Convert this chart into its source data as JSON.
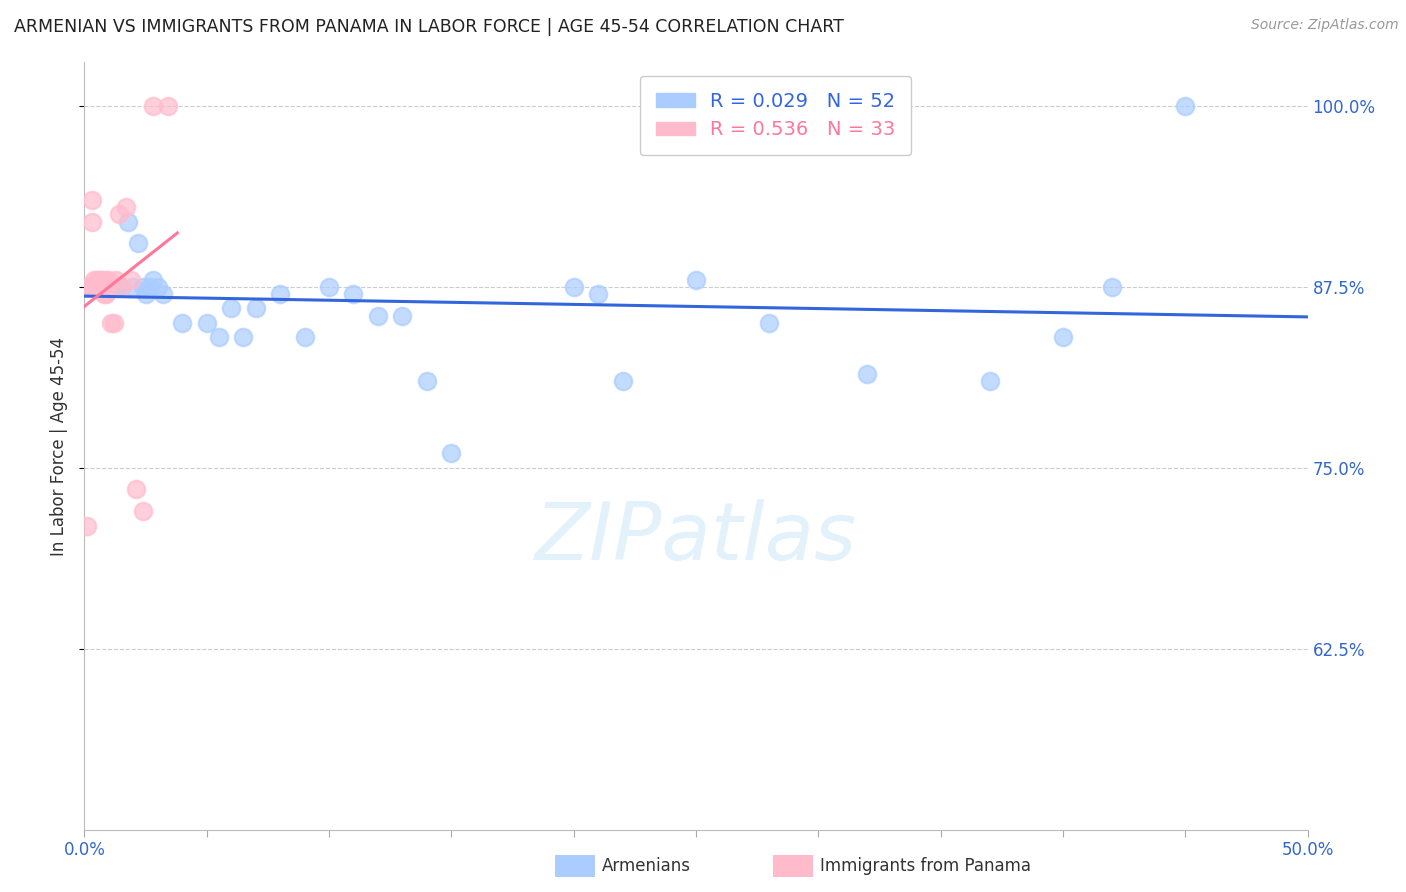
{
  "title": "ARMENIAN VS IMMIGRANTS FROM PANAMA IN LABOR FORCE | AGE 45-54 CORRELATION CHART",
  "source": "Source: ZipAtlas.com",
  "ylabel": "In Labor Force | Age 45-54",
  "xlim": [
    0.0,
    0.5
  ],
  "ylim": [
    0.5,
    1.03
  ],
  "yticks": [
    0.625,
    0.75,
    0.875,
    1.0
  ],
  "ytick_labels": [
    "62.5%",
    "75.0%",
    "87.5%",
    "100.0%"
  ],
  "xticks": [
    0.0,
    0.05,
    0.1,
    0.15,
    0.2,
    0.25,
    0.3,
    0.35,
    0.4,
    0.45,
    0.5
  ],
  "xtick_labels": [
    "0.0%",
    "",
    "",
    "",
    "",
    "",
    "",
    "",
    "",
    "",
    "50.0%"
  ],
  "grid_color": "#cccccc",
  "background_color": "#ffffff",
  "armenians_color": "#aaccff",
  "panama_color": "#ffbbcc",
  "armenians_line_color": "#3366dd",
  "panama_line_color": "#ff7799",
  "legend_line_armenians": "#3366dd",
  "legend_line_panama": "#ff7799",
  "R_armenians": 0.029,
  "N_armenians": 52,
  "R_panama": 0.536,
  "N_panama": 33,
  "watermark": "ZIPatlas",
  "armenians_x": [
    0.001,
    0.002,
    0.002,
    0.003,
    0.004,
    0.004,
    0.005,
    0.005,
    0.006,
    0.006,
    0.007,
    0.008,
    0.009,
    0.01,
    0.01,
    0.012,
    0.013,
    0.014,
    0.015,
    0.018,
    0.02,
    0.022,
    0.024,
    0.025,
    0.027,
    0.028,
    0.03,
    0.032,
    0.04,
    0.05,
    0.055,
    0.06,
    0.065,
    0.07,
    0.08,
    0.09,
    0.1,
    0.11,
    0.12,
    0.13,
    0.14,
    0.15,
    0.2,
    0.21,
    0.22,
    0.25,
    0.28,
    0.32,
    0.37,
    0.4,
    0.42,
    0.45
  ],
  "armenians_y": [
    0.875,
    0.875,
    0.875,
    0.875,
    0.875,
    0.875,
    0.875,
    0.875,
    0.875,
    0.875,
    0.875,
    0.875,
    0.875,
    0.875,
    0.875,
    0.875,
    0.875,
    0.875,
    0.875,
    0.92,
    0.875,
    0.905,
    0.875,
    0.87,
    0.875,
    0.88,
    0.875,
    0.87,
    0.85,
    0.85,
    0.84,
    0.86,
    0.84,
    0.86,
    0.87,
    0.84,
    0.875,
    0.87,
    0.855,
    0.855,
    0.81,
    0.76,
    0.875,
    0.87,
    0.81,
    0.88,
    0.85,
    0.815,
    0.81,
    0.84,
    0.875,
    1.0
  ],
  "panama_x": [
    0.001,
    0.001,
    0.001,
    0.002,
    0.002,
    0.003,
    0.003,
    0.004,
    0.004,
    0.005,
    0.005,
    0.006,
    0.006,
    0.006,
    0.007,
    0.007,
    0.008,
    0.008,
    0.009,
    0.009,
    0.009,
    0.01,
    0.011,
    0.012,
    0.013,
    0.014,
    0.015,
    0.017,
    0.019,
    0.021,
    0.024,
    0.028,
    0.034
  ],
  "panama_y": [
    0.875,
    0.875,
    0.71,
    0.875,
    0.875,
    0.92,
    0.935,
    0.875,
    0.88,
    0.875,
    0.88,
    0.88,
    0.875,
    0.875,
    0.88,
    0.88,
    0.875,
    0.87,
    0.875,
    0.88,
    0.87,
    0.88,
    0.85,
    0.85,
    0.88,
    0.925,
    0.875,
    0.93,
    0.88,
    0.735,
    0.72,
    1.0,
    1.0
  ]
}
